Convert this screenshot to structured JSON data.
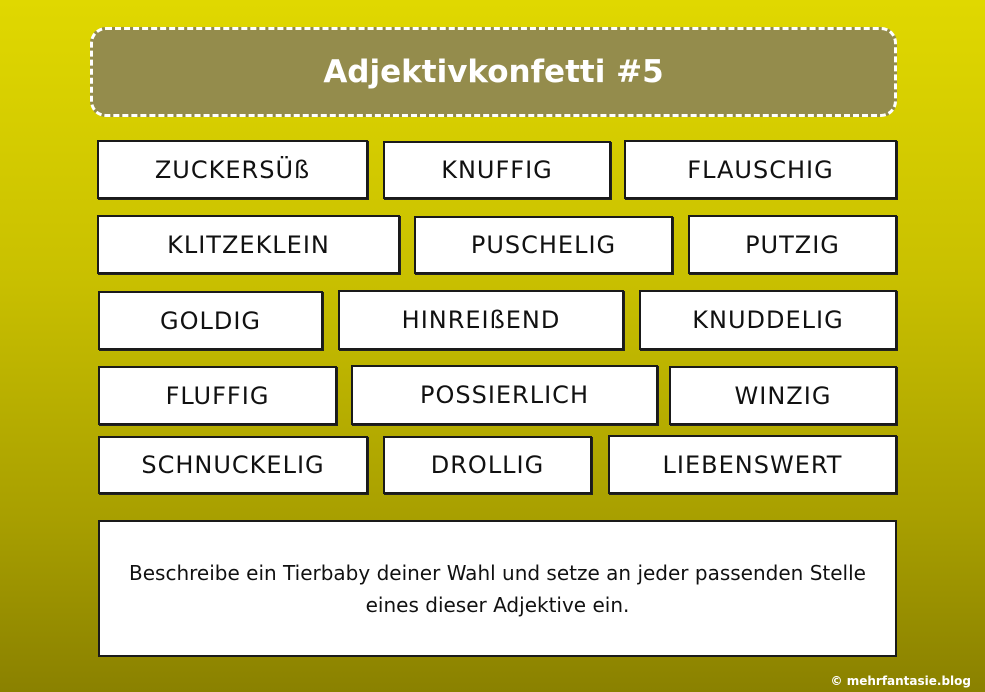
{
  "title": "Adjektivkonfetti #5",
  "words": [
    "ZUCKERSÜß",
    "KNUFFIG",
    "FLAUSCHIG",
    "KLITZEKLEIN",
    "PUSCHELIG",
    "PUTZIG",
    "GOLDIG",
    "HINREIßEND",
    "KNUDDELIG",
    "FLUFFIG",
    "POSSIERLICH",
    "WINZIG",
    "SCHNUCKELIG",
    "DROLLIG",
    "LIEBENSWERT"
  ],
  "instruction": "Beschreibe ein Tierbaby deiner Wahl und setze an jeder passenden Stelle eines dieser Adjektive ein.",
  "footer": "© mehrfantasie.blog",
  "colors": {
    "title_bg": "#948c4c",
    "bg_top": "#e0d800",
    "bg_bottom": "#8a8100"
  }
}
